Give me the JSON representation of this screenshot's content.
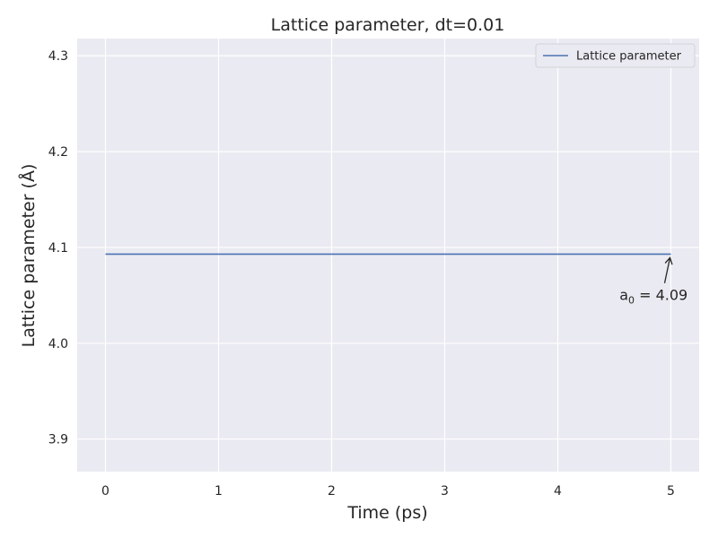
{
  "chart_data": {
    "type": "line",
    "title": "Lattice parameter, dt=0.01",
    "xlabel": "Time (ps)",
    "ylabel": "Lattice parameter (Å)",
    "xlim": [
      -0.25,
      5.25
    ],
    "ylim": [
      3.866,
      4.318
    ],
    "x_ticks": [
      0,
      1,
      2,
      3,
      4,
      5
    ],
    "y_ticks": [
      3.9,
      4.0,
      4.1,
      4.2,
      4.3
    ],
    "x_tick_labels": [
      "0",
      "1",
      "2",
      "3",
      "4",
      "5"
    ],
    "y_tick_labels": [
      "3.9",
      "4.0",
      "4.1",
      "4.2",
      "4.3"
    ],
    "grid": true,
    "legend_position": "top-right",
    "series": [
      {
        "name": "Lattice parameter",
        "color": "#4c72b0",
        "x": [
          0,
          5
        ],
        "y": [
          4.093,
          4.093
        ]
      }
    ],
    "annotation": {
      "base": "a",
      "subscript": "0",
      "rest": " = 4.09",
      "point": [
        5,
        4.093
      ],
      "text_position": [
        4.95,
        4.045
      ]
    }
  },
  "colors": {
    "plot_background": "#eaeaf2",
    "grid": "#ffffff",
    "line": "#4c72b0"
  }
}
